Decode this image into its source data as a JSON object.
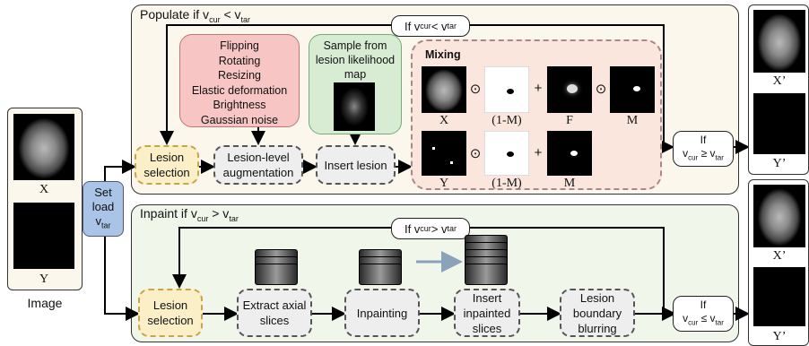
{
  "populate": {
    "title": "Populate if v",
    "title_sub1": "cur",
    "title_mid": " < v",
    "title_sub2": "tar",
    "loop": {
      "pre": "If v",
      "sub1": "cur",
      "mid": " < v",
      "sub2": "tar"
    },
    "aug_list": [
      "Flipping",
      "Rotating",
      "Resizing",
      "Elastic deformation",
      "Brightness",
      "Gaussian noise"
    ],
    "sample_title": "Sample from lesion likelihood map",
    "lesion_selection": "Lesion selection",
    "lesion_aug": "Lesion-level augmentation",
    "insert_lesion": "Insert lesion",
    "mixing": {
      "title": "Mixing",
      "row1_labels": [
        "X",
        "(1-M)",
        "F",
        "M"
      ],
      "row2_labels": [
        "Y",
        "(1-M)",
        "M"
      ],
      "ops": [
        "⊙",
        "+",
        "⊙"
      ]
    },
    "cond": {
      "pre": "If",
      "line2_pre": "v",
      "sub1": "cur",
      "mid": " ≥ v",
      "sub2": "tar"
    }
  },
  "inpaint": {
    "title": "Inpaint if v",
    "title_sub1": "cur",
    "title_mid": " > v",
    "title_sub2": "tar",
    "loop": {
      "pre": "If v",
      "sub1": "cur",
      "mid": " > v",
      "sub2": "tar"
    },
    "lesion_selection": "Lesion selection",
    "extract": "Extract axial slices",
    "inpainting": "Inpainting",
    "insert_slices": "Insert inpainted slices",
    "blurring": "Lesion boundary blurring",
    "cond": {
      "pre": "If",
      "line2_pre": "v",
      "sub1": "cur",
      "mid": " ≤ v",
      "sub2": "tar"
    }
  },
  "input": {
    "x_label": "X",
    "y_label": "Y",
    "caption": "Image"
  },
  "set_load": {
    "line1": "Set",
    "line2": "load",
    "line3": "v",
    "sub": "tar"
  },
  "outputs": {
    "top": [
      "X’",
      "Y’"
    ],
    "bottom": [
      "X’",
      "Y’"
    ]
  },
  "colors": {
    "populate_bg": "#fbf7ec",
    "inpaint_bg": "#f0f7ea",
    "aug_bg": "#f7c6c4",
    "sample_bg": "#d7ecd3",
    "mixing_bg": "#fbe6de",
    "lesion_sel_bg": "#fbefc8",
    "step_bg": "#eeeeee",
    "setload_bg": "#a9c4e6"
  }
}
